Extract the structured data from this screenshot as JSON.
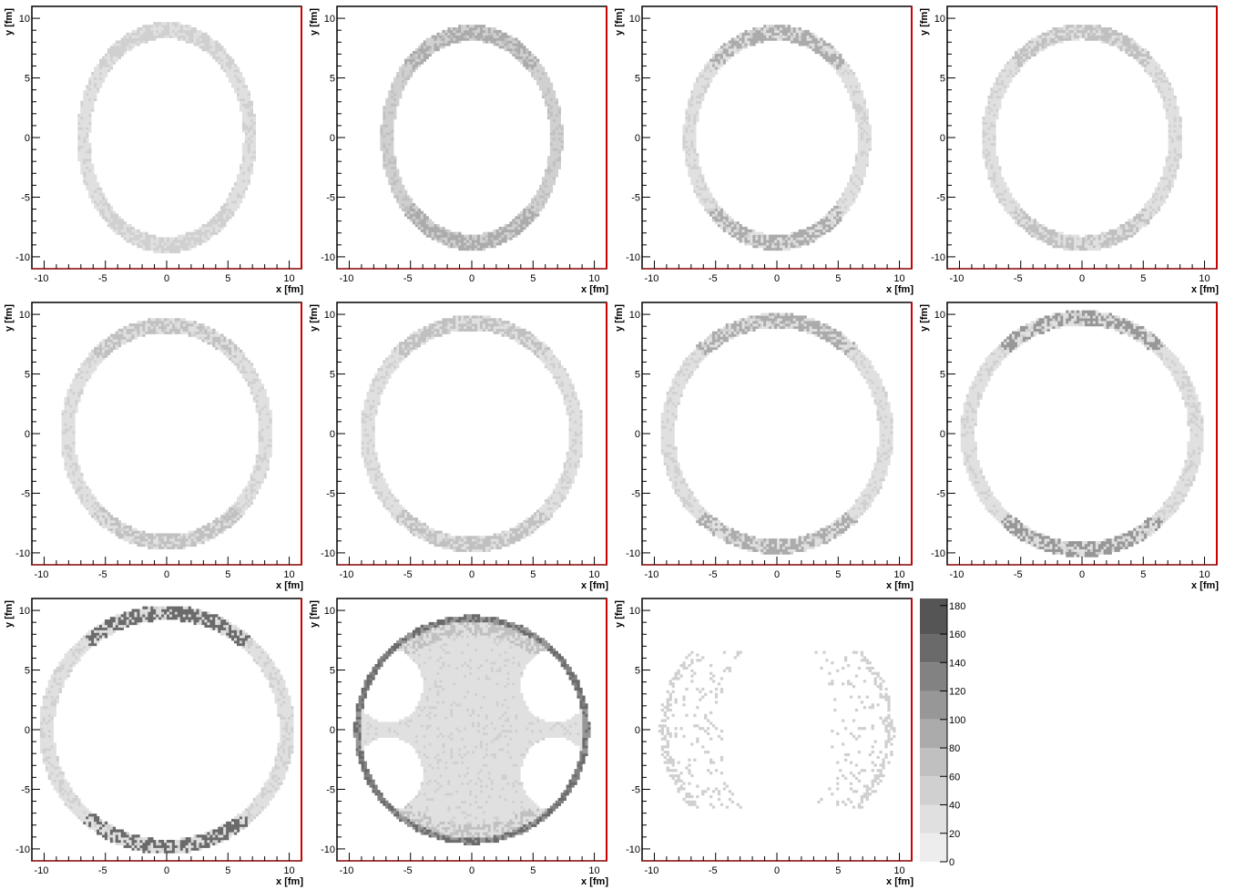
{
  "figure": {
    "colors": {
      "frame": "#000000",
      "right_axis": "#cc0000",
      "bins": [
        "#ffffff",
        "#ededed",
        "#e0e0e0",
        "#d0d0d0",
        "#c0c0c0",
        "#ababab",
        "#979797",
        "#828282",
        "#6a6a6a",
        "#555555"
      ]
    }
  },
  "chart_data": [
    {
      "type": "heatmap",
      "xlabel": "x [fm]",
      "ylabel": "y [fm]",
      "xlim": [
        -11,
        11
      ],
      "ylim": [
        -11,
        11
      ],
      "x_ticks": [
        "-10",
        "-5",
        "0",
        "5",
        "10"
      ],
      "y_ticks": [
        "-10",
        "-5",
        "0",
        "5",
        "10"
      ],
      "shape": "ring",
      "ring_rx": 6.8,
      "ring_ry": 9.0,
      "ring_level": 2,
      "ring_outer_level": 3
    },
    {
      "type": "heatmap",
      "xlabel": "x [fm]",
      "ylabel": "y [fm]",
      "xlim": [
        -11,
        11
      ],
      "ylim": [
        -11,
        11
      ],
      "x_ticks": [
        "-10",
        "-5",
        "0",
        "5",
        "10"
      ],
      "y_ticks": [
        "-10",
        "-5",
        "0",
        "5",
        "10"
      ],
      "shape": "ring",
      "ring_rx": 6.9,
      "ring_ry": 8.8,
      "ring_level": 3,
      "ring_outer_level": 5
    },
    {
      "type": "heatmap",
      "xlabel": "x [fm]",
      "ylabel": "y [fm]",
      "xlim": [
        -11,
        11
      ],
      "ylim": [
        -11,
        11
      ],
      "x_ticks": [
        "-10",
        "-5",
        "0",
        "5",
        "10"
      ],
      "y_ticks": [
        "-10",
        "-5",
        "0",
        "5",
        "10"
      ],
      "shape": "ring",
      "ring_rx": 7.1,
      "ring_ry": 8.8,
      "ring_level": 2,
      "ring_outer_level": 5
    },
    {
      "type": "heatmap",
      "xlabel": "x [fm]",
      "ylabel": "y [fm]",
      "xlim": [
        -11,
        11
      ],
      "ylim": [
        -11,
        11
      ],
      "x_ticks": [
        "-10",
        "-5",
        "0",
        "5",
        "10"
      ],
      "y_ticks": [
        "-10",
        "-5",
        "0",
        "5",
        "10"
      ],
      "shape": "ring",
      "ring_rx": 7.6,
      "ring_ry": 8.9,
      "ring_level": 2,
      "ring_outer_level": 4
    },
    {
      "type": "heatmap",
      "xlabel": "x [fm]",
      "ylabel": "y [fm]",
      "xlim": [
        -11,
        11
      ],
      "ylim": [
        -11,
        11
      ],
      "x_ticks": [
        "-10",
        "-5",
        "0",
        "5",
        "10"
      ],
      "y_ticks": [
        "-10",
        "-5",
        "0",
        "5",
        "10"
      ],
      "shape": "ring",
      "ring_rx": 8.1,
      "ring_ry": 9.1,
      "ring_level": 2,
      "ring_outer_level": 4
    },
    {
      "type": "heatmap",
      "xlabel": "x [fm]",
      "ylabel": "y [fm]",
      "xlim": [
        -11,
        11
      ],
      "ylim": [
        -11,
        11
      ],
      "x_ticks": [
        "-10",
        "-5",
        "0",
        "5",
        "10"
      ],
      "y_ticks": [
        "-10",
        "-5",
        "0",
        "5",
        "10"
      ],
      "shape": "ring",
      "ring_rx": 8.5,
      "ring_ry": 9.3,
      "ring_level": 2,
      "ring_outer_level": 4
    },
    {
      "type": "heatmap",
      "xlabel": "x [fm]",
      "ylabel": "y [fm]",
      "xlim": [
        -11,
        11
      ],
      "ylim": [
        -11,
        11
      ],
      "x_ticks": [
        "-10",
        "-5",
        "0",
        "5",
        "10"
      ],
      "y_ticks": [
        "-10",
        "-5",
        "0",
        "5",
        "10"
      ],
      "shape": "ring",
      "ring_rx": 8.9,
      "ring_ry": 9.5,
      "ring_level": 2,
      "ring_outer_level": 5
    },
    {
      "type": "heatmap",
      "xlabel": "x [fm]",
      "ylabel": "y [fm]",
      "xlim": [
        -11,
        11
      ],
      "ylim": [
        -11,
        11
      ],
      "x_ticks": [
        "-10",
        "-5",
        "0",
        "5",
        "10"
      ],
      "y_ticks": [
        "-10",
        "-5",
        "0",
        "5",
        "10"
      ],
      "shape": "ring",
      "ring_rx": 9.3,
      "ring_ry": 9.7,
      "ring_level": 2,
      "ring_outer_level": 6
    },
    {
      "type": "heatmap",
      "xlabel": "x [fm]",
      "ylabel": "y [fm]",
      "xlim": [
        -11,
        11
      ],
      "ylim": [
        -11,
        11
      ],
      "x_ticks": [
        "-10",
        "-5",
        "0",
        "5",
        "10"
      ],
      "y_ticks": [
        "-10",
        "-5",
        "0",
        "5",
        "10"
      ],
      "shape": "ring",
      "ring_rx": 9.8,
      "ring_ry": 9.8,
      "ring_level": 2,
      "ring_outer_level": 8
    },
    {
      "type": "heatmap",
      "xlabel": "x [fm]",
      "ylabel": "y [fm]",
      "xlim": [
        -11,
        11
      ],
      "ylim": [
        -11,
        11
      ],
      "x_ticks": [
        "-10",
        "-5",
        "0",
        "5",
        "10"
      ],
      "y_ticks": [
        "-10",
        "-5",
        "0",
        "5",
        "10"
      ],
      "shape": "filled_disk_with_holes",
      "disk_r": 9.6,
      "fill_level": 2,
      "rim_level": 8,
      "holes": [
        {
          "cx": -6.8,
          "cy": 3.7,
          "rx": 2.8,
          "ry": 3.1
        },
        {
          "cx": 6.8,
          "cy": 3.7,
          "rx": 2.8,
          "ry": 3.1
        },
        {
          "cx": -6.8,
          "cy": -3.7,
          "rx": 2.8,
          "ry": 3.1
        },
        {
          "cx": 6.8,
          "cy": -3.7,
          "rx": 2.8,
          "ry": 3.1
        }
      ]
    },
    {
      "type": "heatmap",
      "xlabel": "x [fm]",
      "ylabel": "y [fm]",
      "xlim": [
        -11,
        11
      ],
      "ylim": [
        -11,
        11
      ],
      "x_ticks": [
        "-10",
        "0",
        "5",
        "10"
      ],
      "y_ticks": [
        "-10",
        "-5",
        "0",
        "5",
        "10"
      ],
      "extra_x_ticks": [
        "-5"
      ],
      "shape": "lunes",
      "fill_level": 2,
      "rim_level": 5,
      "lunes": [
        {
          "side": "left",
          "outer_rx": 9.6,
          "outer_ry": 9.6,
          "inner_cx": -1.0,
          "inner_rx": 3.5,
          "inner_ry": 7.5,
          "ymax": 6.7
        },
        {
          "side": "right",
          "outer_rx": 9.6,
          "outer_ry": 9.6,
          "inner_cx": 1.0,
          "inner_rx": 3.5,
          "inner_ry": 7.5,
          "ymax": 6.7
        }
      ]
    }
  ],
  "colorbar": {
    "ticks": [
      "180",
      "160",
      "140",
      "120",
      "100",
      "80",
      "60",
      "40",
      "20",
      "0"
    ],
    "range": [
      0,
      185
    ]
  }
}
